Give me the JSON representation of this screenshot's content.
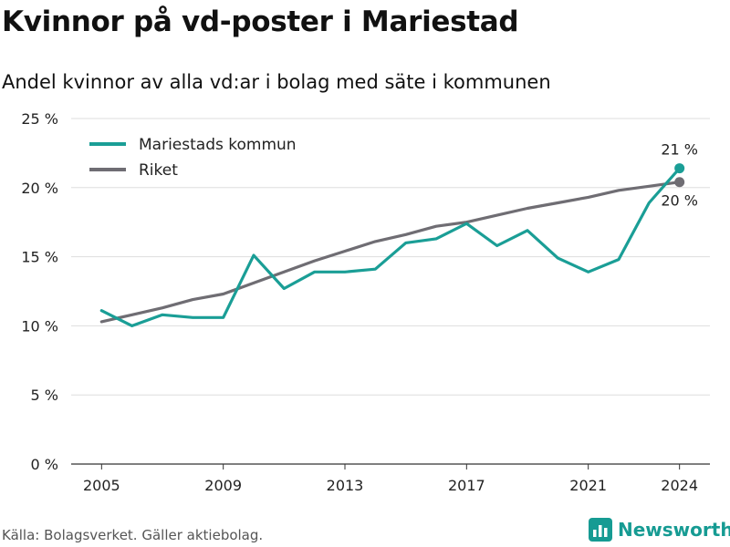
{
  "title": "Kvinnor på vd-poster i Mariestad",
  "subtitle": "Andel kvinnor av alla vd:ar i bolag med säte i kommunen",
  "source": "Källa: Bolagsverket. Gäller aktiebolag.",
  "brand": "Newsworthy",
  "chart_data": {
    "type": "line",
    "x": [
      2005,
      2006,
      2007,
      2008,
      2009,
      2010,
      2011,
      2012,
      2013,
      2014,
      2015,
      2016,
      2017,
      2018,
      2019,
      2020,
      2021,
      2022,
      2023,
      2024
    ],
    "series": [
      {
        "name": "Mariestads kommun",
        "color": "#1a9e96",
        "values": [
          11.1,
          10.0,
          10.8,
          10.6,
          10.6,
          15.1,
          12.7,
          13.9,
          13.9,
          14.1,
          16.0,
          16.3,
          17.4,
          15.8,
          16.9,
          14.9,
          13.9,
          14.8,
          18.9,
          21.4
        ],
        "end_label": "21 %"
      },
      {
        "name": "Riket",
        "color": "#6f6d73",
        "values": [
          10.3,
          10.8,
          11.3,
          11.9,
          12.3,
          13.1,
          13.9,
          14.7,
          15.4,
          16.1,
          16.6,
          17.2,
          17.5,
          18.0,
          18.5,
          18.9,
          19.3,
          19.8,
          20.1,
          20.4
        ],
        "end_label": "20 %"
      }
    ],
    "xticks": [
      2005,
      2009,
      2013,
      2017,
      2021,
      2024
    ],
    "yticks": [
      0,
      5,
      10,
      15,
      20,
      25
    ],
    "ytick_suffix": " %",
    "ylim": [
      0,
      25
    ],
    "xlim": [
      2004,
      2025
    ],
    "grid": true,
    "legend_position": "top-left"
  }
}
